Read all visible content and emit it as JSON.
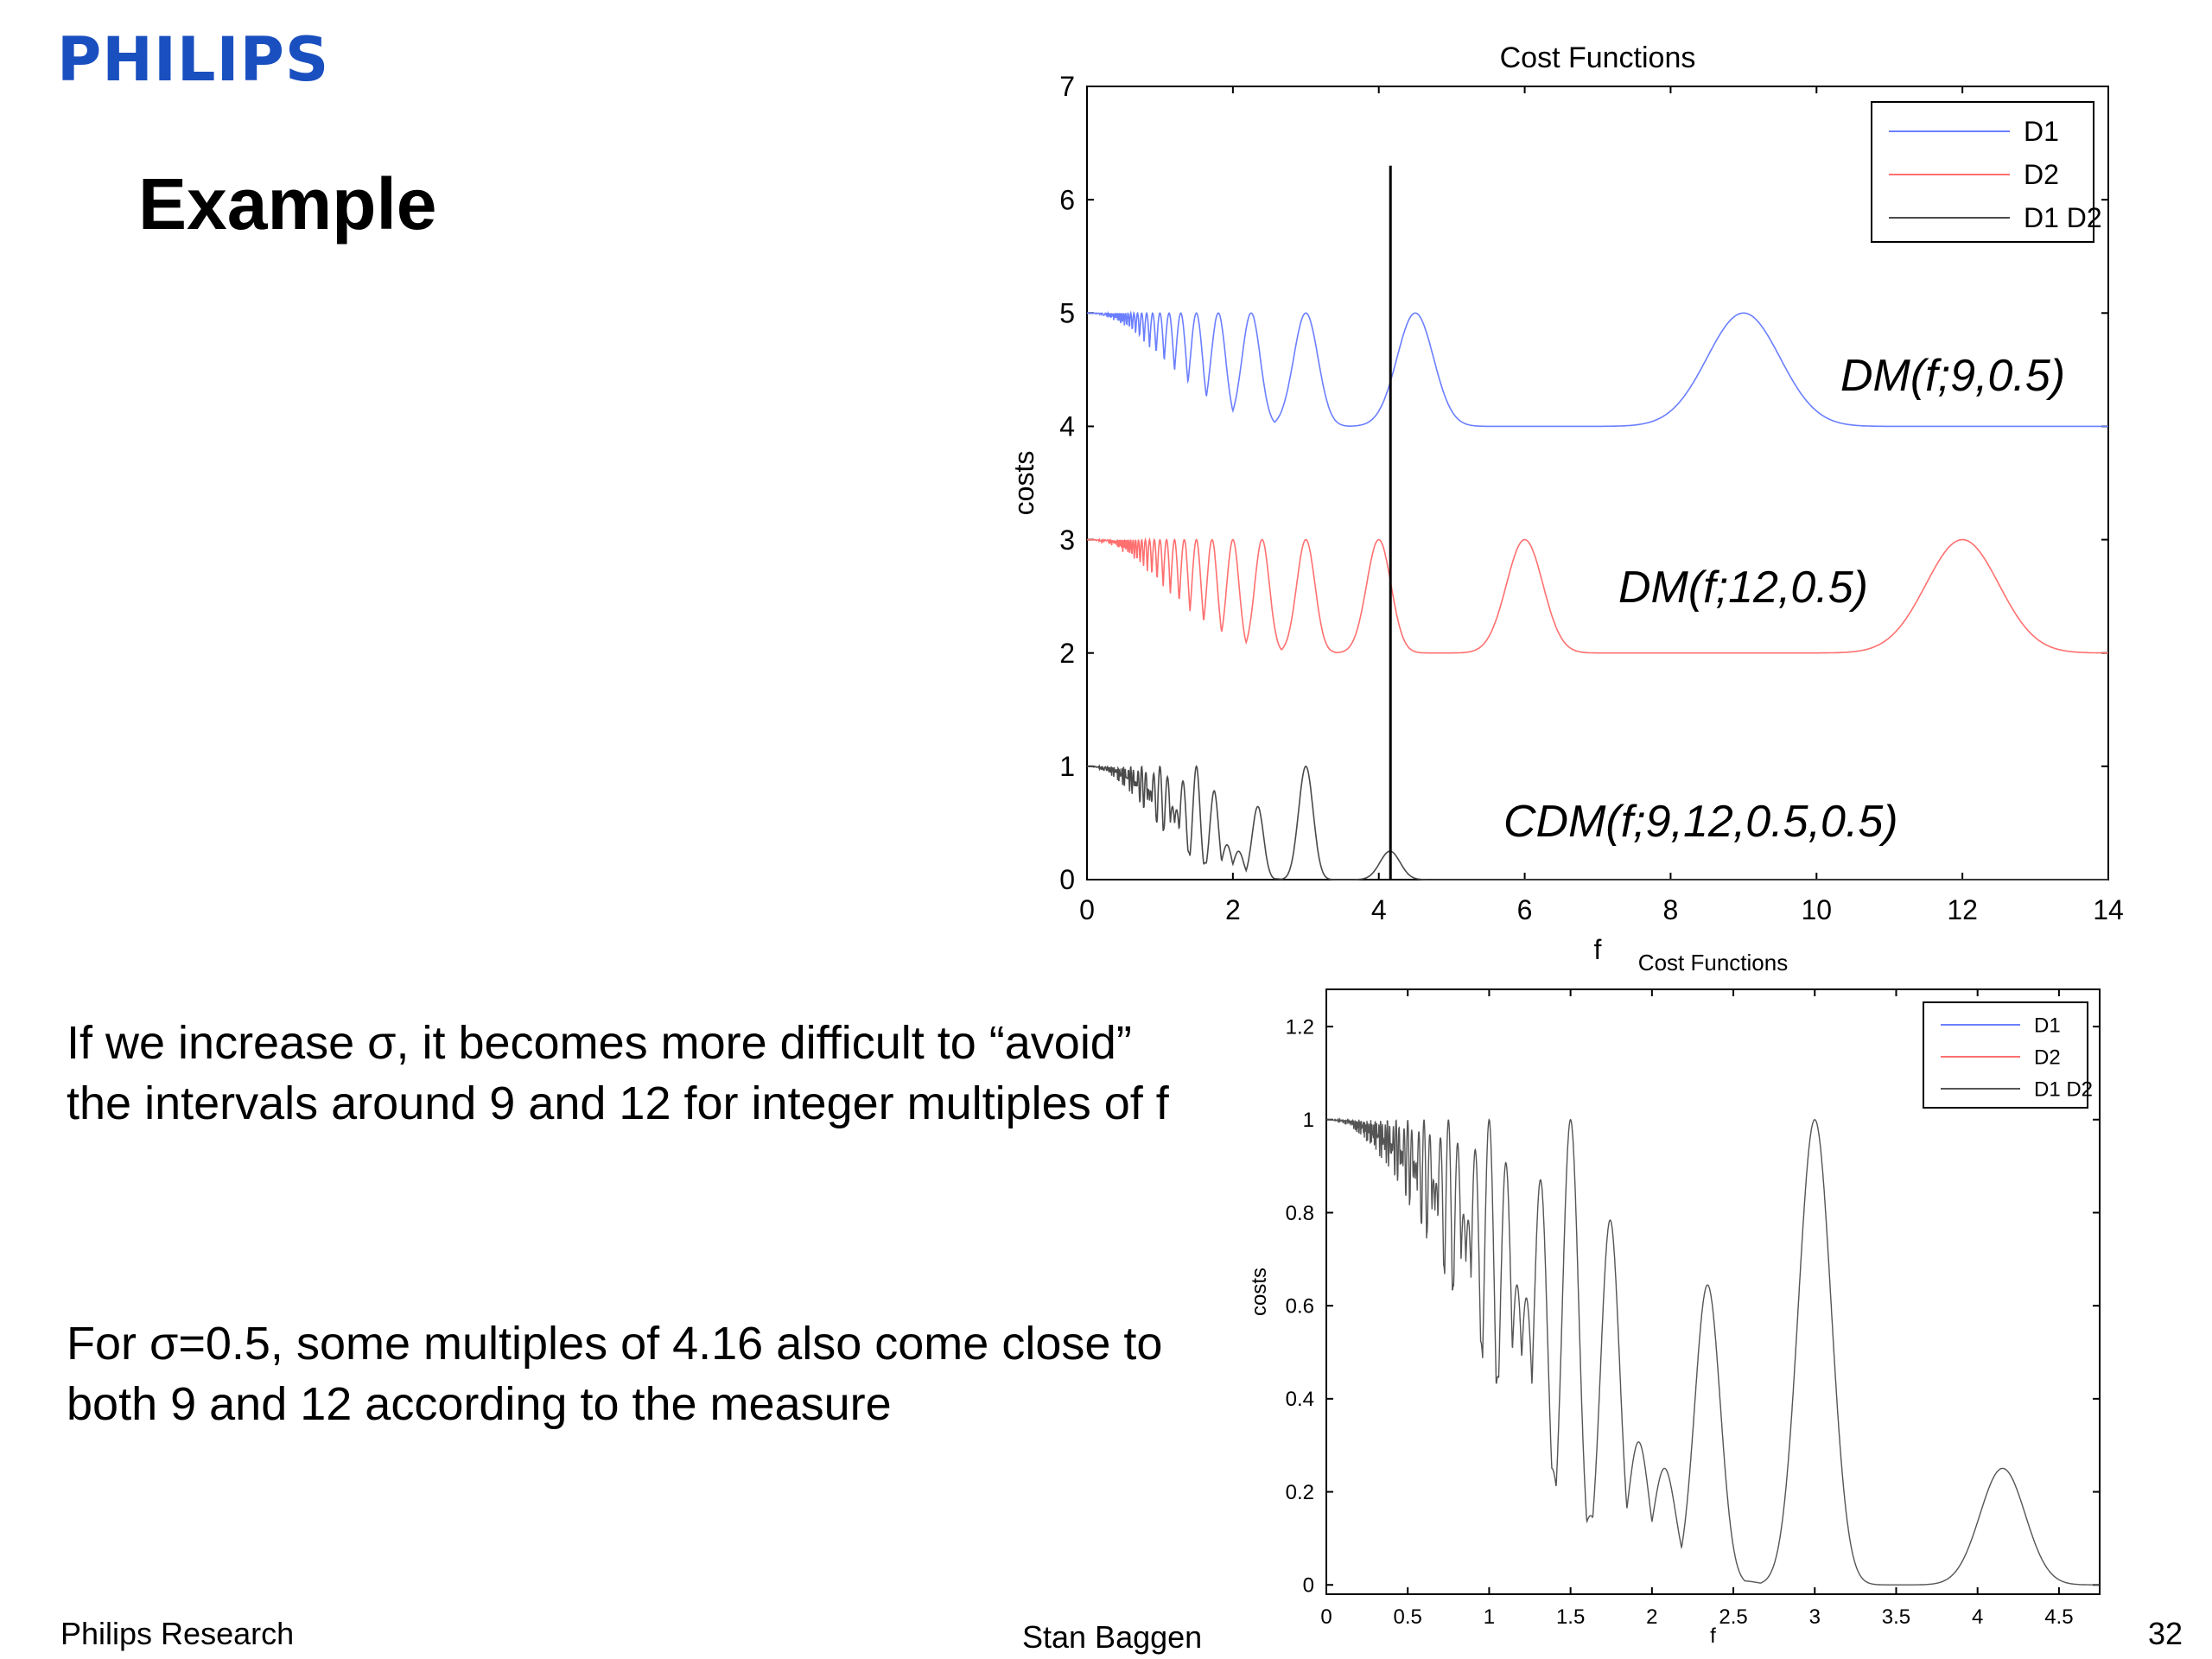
{
  "header": {
    "logo": "PHILIPS",
    "title": "Example"
  },
  "bullets": [
    "If we increase σ, it becomes more difficult to “avoid” the intervals around 9 and 12 for integer multiples of f",
    "For σ=0.5, some multiples of 4.16 also come close to both 9 and 12 according to the measure"
  ],
  "footer": {
    "left": "Philips Research",
    "center": "Stan Baggen",
    "page": "32"
  },
  "colors": {
    "logo": "#1a4fbf",
    "D1": "#6b7fff",
    "D2": "#ff7070",
    "D1D2": "#4a4a4a"
  },
  "chart_data": [
    {
      "type": "line",
      "title": "Cost Functions",
      "xlabel": "f",
      "ylabel": "costs",
      "xlim": [
        0,
        14
      ],
      "ylim": [
        0,
        7
      ],
      "xticks": [
        "0",
        "2",
        "4",
        "6",
        "8",
        "10",
        "12",
        "14"
      ],
      "yticks": [
        "0",
        "1",
        "2",
        "3",
        "4",
        "5",
        "6",
        "7"
      ],
      "legend": {
        "position": "top-right",
        "entries": [
          "D1",
          "D2",
          "D1 D2"
        ]
      },
      "vertical_marker": {
        "x": 4.16,
        "y_top": 6.3
      },
      "series": [
        {
          "name": "D1",
          "color": "#6b7fff",
          "offset": 4,
          "centers": [
            9
          ],
          "sigma": 0.5,
          "label": "DM(f;9,0.5)"
        },
        {
          "name": "D2",
          "color": "#ff7070",
          "offset": 2,
          "centers": [
            12
          ],
          "sigma": 0.5,
          "label": "DM(f;12,0.5)"
        },
        {
          "name": "D1 D2",
          "color": "#4a4a4a",
          "offset": 0,
          "centers": [
            9,
            12
          ],
          "sigma": 0.5,
          "label": "CDM(f;9,12,0.5,0.5)"
        }
      ]
    },
    {
      "type": "line",
      "title": "Cost Functions",
      "xlabel": "f",
      "ylabel": "costs",
      "xlim": [
        0,
        4.75
      ],
      "ylim": [
        -0.02,
        1.28
      ],
      "xticks": [
        "0",
        "0.5",
        "1",
        "1.5",
        "2",
        "2.5",
        "3",
        "3.5",
        "4",
        "4.5"
      ],
      "yticks": [
        "0",
        "0.2",
        "0.4",
        "0.6",
        "0.8",
        "1",
        "1.2"
      ],
      "legend": {
        "position": "top-right",
        "entries": [
          "D1",
          "D2",
          "D1 D2"
        ]
      },
      "series": [
        {
          "name": "D1 D2",
          "color": "#555555",
          "offset": 0,
          "centers": [
            9,
            12
          ],
          "sigma": 0.5
        }
      ]
    }
  ]
}
